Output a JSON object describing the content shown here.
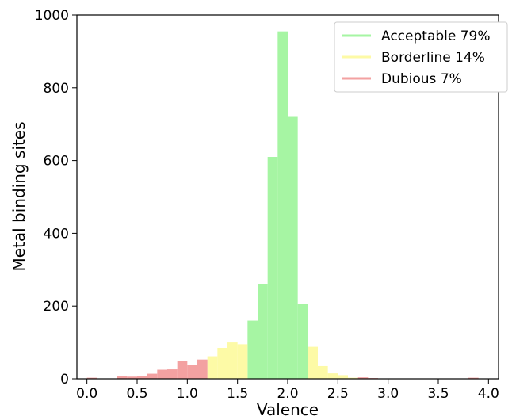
{
  "chart_data": {
    "type": "bar",
    "xlabel": "Valence",
    "ylabel": "Metal binding sites",
    "xlim": [
      -0.1,
      4.1
    ],
    "ylim": [
      0,
      1000
    ],
    "xticks": [
      "0.0",
      "0.5",
      "1.0",
      "1.5",
      "2.0",
      "2.5",
      "3.0",
      "3.5",
      "4.0"
    ],
    "xtick_values": [
      0.0,
      0.5,
      1.0,
      1.5,
      2.0,
      2.5,
      3.0,
      3.5,
      4.0
    ],
    "yticks": [
      "0",
      "200",
      "400",
      "600",
      "800",
      "1000"
    ],
    "ytick_values": [
      0,
      200,
      400,
      600,
      800,
      1000
    ],
    "bin_width": 0.1,
    "grid": false,
    "legend_position": "top-right",
    "series": [
      {
        "name": "Acceptable 79%",
        "color": "#a6f5a3",
        "bins": [
          {
            "x": 1.65,
            "y": 160
          },
          {
            "x": 1.75,
            "y": 260
          },
          {
            "x": 1.85,
            "y": 610
          },
          {
            "x": 1.95,
            "y": 955
          },
          {
            "x": 2.05,
            "y": 720
          },
          {
            "x": 2.15,
            "y": 205
          }
        ]
      },
      {
        "name": "Borderline 14%",
        "color": "#fdfaa6",
        "bins": [
          {
            "x": 1.25,
            "y": 62
          },
          {
            "x": 1.35,
            "y": 85
          },
          {
            "x": 1.45,
            "y": 100
          },
          {
            "x": 1.55,
            "y": 95
          },
          {
            "x": 2.25,
            "y": 88
          },
          {
            "x": 2.35,
            "y": 35
          },
          {
            "x": 2.45,
            "y": 15
          },
          {
            "x": 2.55,
            "y": 10
          },
          {
            "x": 2.65,
            "y": 3
          }
        ]
      },
      {
        "name": "Dubious 7%",
        "color": "#f3a1a1",
        "bins": [
          {
            "x": 0.05,
            "y": 3
          },
          {
            "x": 0.35,
            "y": 8
          },
          {
            "x": 0.45,
            "y": 6
          },
          {
            "x": 0.55,
            "y": 7
          },
          {
            "x": 0.65,
            "y": 14
          },
          {
            "x": 0.75,
            "y": 25
          },
          {
            "x": 0.85,
            "y": 26
          },
          {
            "x": 0.95,
            "y": 48
          },
          {
            "x": 1.05,
            "y": 38
          },
          {
            "x": 1.15,
            "y": 53
          },
          {
            "x": 2.75,
            "y": 4
          },
          {
            "x": 2.85,
            "y": 2
          },
          {
            "x": 3.85,
            "y": 3
          }
        ]
      }
    ]
  }
}
